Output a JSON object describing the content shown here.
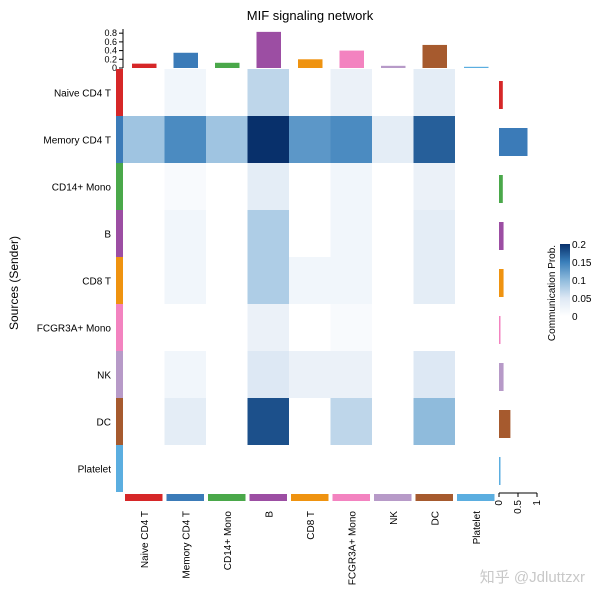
{
  "chart_data": {
    "type": "heatmap",
    "title": "MIF signaling network",
    "ylabel": "Sources (Sender)",
    "legend_title": "Communication Prob.",
    "legend_ticks": [
      "0.2",
      "0.15",
      "0.1",
      "0.05",
      "0"
    ],
    "color_range": [
      0,
      0.2
    ],
    "rows": [
      "Naive CD4 T",
      "Memory CD4 T",
      "CD14+ Mono",
      "B",
      "CD8 T",
      "FCGR3A+ Mono",
      "NK",
      "DC",
      "Platelet"
    ],
    "columns": [
      "Naive CD4 T",
      "Memory CD4 T",
      "CD14+ Mono",
      "B",
      "CD8 T",
      "FCGR3A+ Mono",
      "NK",
      "DC",
      "Platelet"
    ],
    "group_colors": [
      "#d62728",
      "#3b7bb8",
      "#4aa84a",
      "#9c4ea3",
      "#ef9310",
      "#f383c0",
      "#b79ac8",
      "#a65a2e",
      "#5baee0"
    ],
    "values": [
      [
        0,
        0.02,
        0,
        0.07,
        0,
        0.03,
        0,
        0.04,
        0
      ],
      [
        0.09,
        0.14,
        0.09,
        0.21,
        0.13,
        0.14,
        0.04,
        0.17,
        0
      ],
      [
        0,
        0.01,
        0,
        0.04,
        0,
        0.02,
        0,
        0.03,
        0
      ],
      [
        0,
        0.02,
        0,
        0.08,
        0,
        0.02,
        0,
        0.04,
        0
      ],
      [
        0,
        0.02,
        0,
        0.08,
        0.02,
        0.02,
        0,
        0.04,
        0
      ],
      [
        0,
        0,
        0,
        0.03,
        0,
        0.01,
        0,
        0,
        0
      ],
      [
        0,
        0.02,
        0,
        0.05,
        0.03,
        0.03,
        0,
        0.05,
        0
      ],
      [
        0,
        0.04,
        0,
        0.18,
        0,
        0.07,
        0,
        0.1,
        0
      ],
      [
        0,
        0,
        0,
        0,
        0,
        0,
        0,
        0,
        0
      ]
    ],
    "top_bar": {
      "values": [
        0.1,
        0.35,
        0.12,
        0.83,
        0.2,
        0.4,
        0.05,
        0.53,
        0.02
      ],
      "ticks": [
        "0.8",
        "0.6",
        "0.4",
        "0.2",
        "0"
      ],
      "ylim": [
        0,
        0.85
      ]
    },
    "right_bar": {
      "values": [
        0.1,
        0.75,
        0.1,
        0.12,
        0.12,
        0.03,
        0.12,
        0.3,
        0.02
      ],
      "ticks": [
        "0",
        "0.5",
        "1"
      ],
      "xlim": [
        0,
        1
      ]
    }
  },
  "watermark": "知乎 @Jdluttzxr"
}
